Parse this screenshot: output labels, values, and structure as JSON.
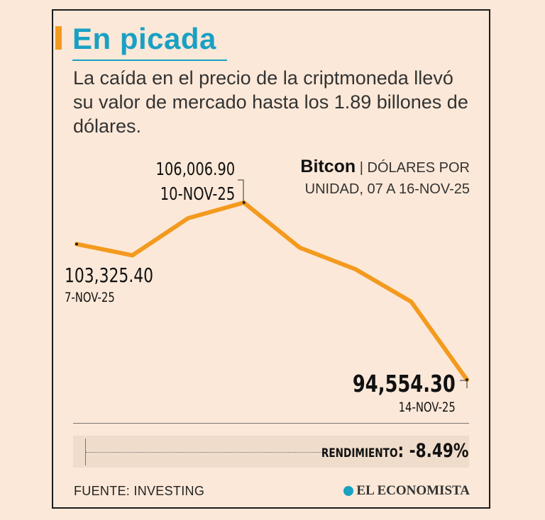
{
  "header": {
    "title": "En picada",
    "subtitle": "La caída en el precio de la criptmoneda llevó su valor de mercado hasta los 1.89 billones de dólares."
  },
  "series_label": {
    "name": "Bitcon",
    "unit_line1": " | DÓLARES POR",
    "unit_line2": "UNIDAD, 07 A 16-NOV-25"
  },
  "annotations": {
    "start_value": "103,325.40",
    "start_date": "7-NOV-25",
    "peak_value": "106,006.90",
    "peak_date": "10-NOV-25",
    "end_value": "94,554.30",
    "end_date": "14-NOV-25"
  },
  "performance": {
    "label": "RENDIMIENTO",
    "value": ": -8.49%"
  },
  "footer": {
    "source": "FUENTE: INVESTING",
    "brand": "EL ECONOMISTA"
  },
  "colors": {
    "line": "#f39a1e",
    "title": "#1aa0c3",
    "background": "#fbe8d8"
  },
  "chart_data": {
    "type": "line",
    "title": "Bitcon",
    "ylabel": "Dólares por unidad",
    "xlabel": "",
    "x": [
      0,
      1,
      2,
      3,
      4,
      5,
      6,
      7
    ],
    "values": [
      103325.4,
      102600,
      105000,
      106006.9,
      103100,
      101700,
      99600,
      94554.3
    ],
    "ylim": [
      94000,
      107000
    ],
    "marked_points": [
      0,
      3,
      7
    ]
  }
}
